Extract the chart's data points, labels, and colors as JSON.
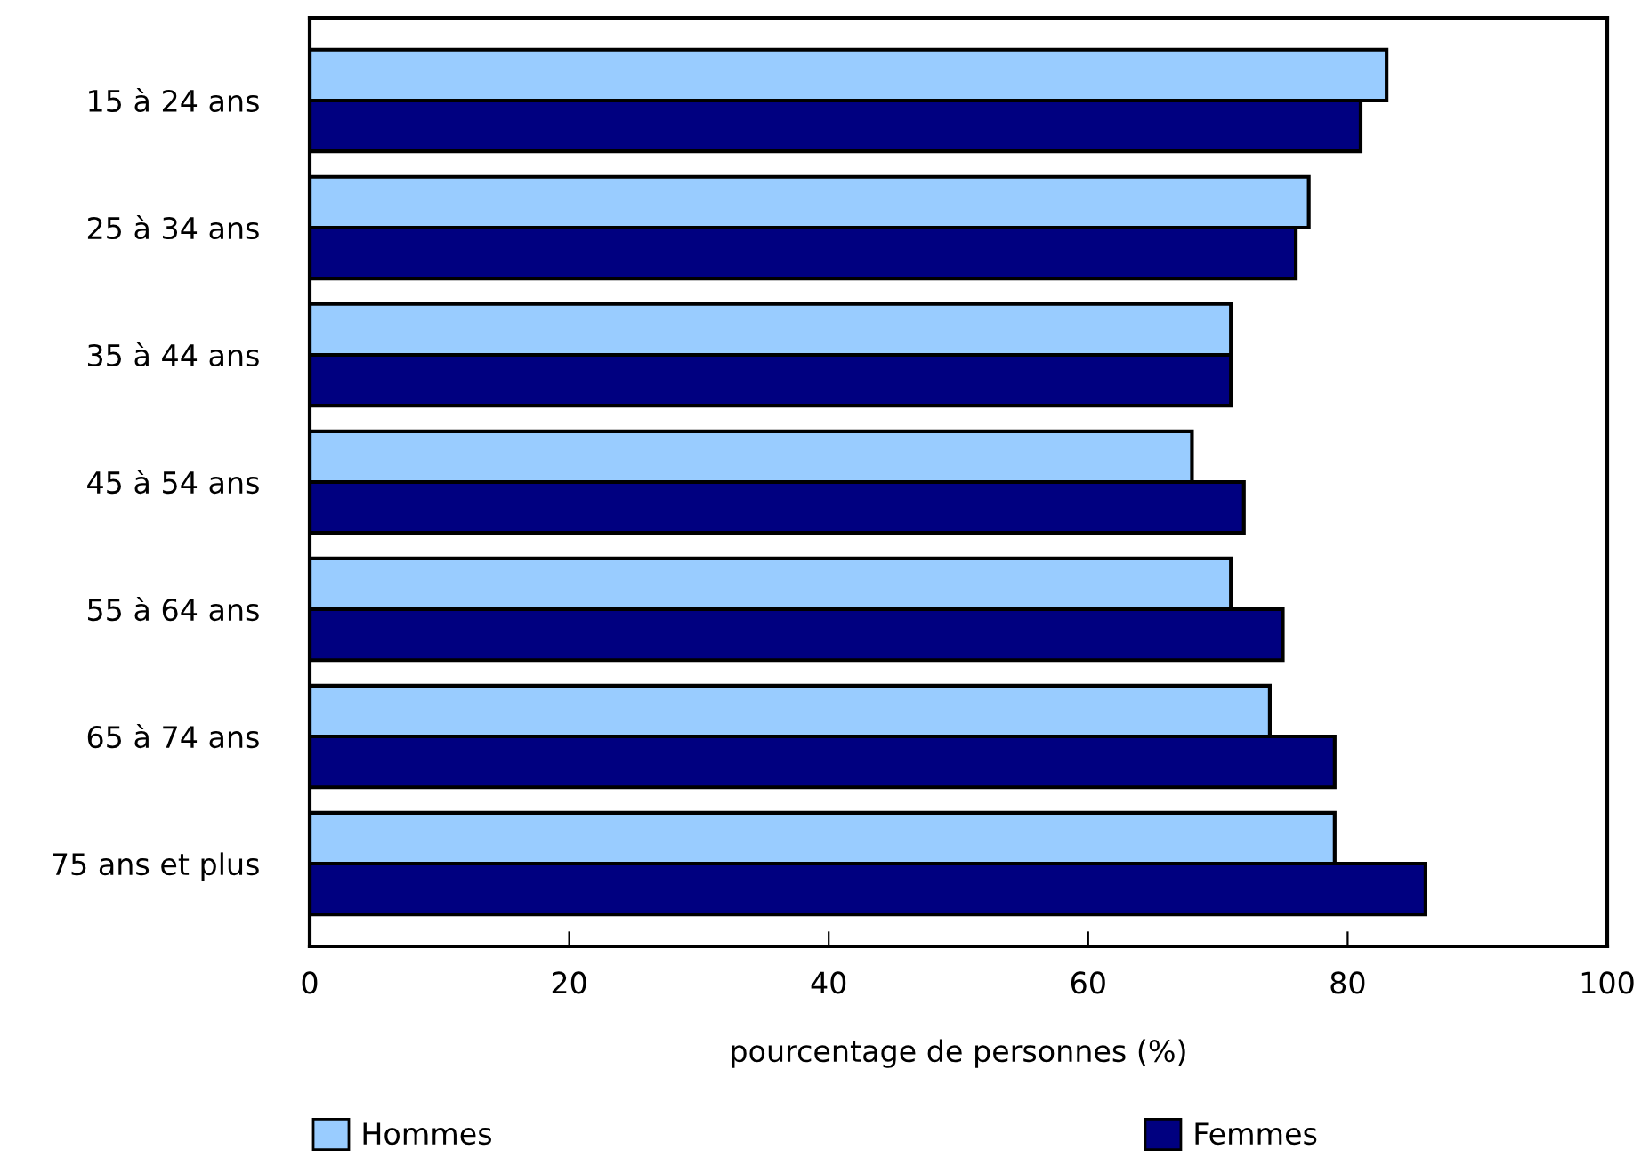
{
  "chart_data": {
    "type": "bar",
    "orientation": "horizontal",
    "categories": [
      "15 à 24 ans",
      "25 à 34 ans",
      "35 à 44 ans",
      "45 à 54 ans",
      "55 à 64 ans",
      "65 à 74 ans",
      "75 ans et plus"
    ],
    "series": [
      {
        "name": "Hommes",
        "color": "#99ccff",
        "values": [
          83,
          77,
          71,
          68,
          71,
          74,
          79
        ]
      },
      {
        "name": "Femmes",
        "color": "#000080",
        "values": [
          81,
          76,
          71,
          72,
          75,
          79,
          86
        ]
      }
    ],
    "xlabel": "pourcentage de personnes (%)",
    "xlim": [
      0,
      100
    ],
    "xticks": [
      0,
      20,
      40,
      60,
      80,
      100
    ],
    "grid": false,
    "legend": "bottom"
  }
}
